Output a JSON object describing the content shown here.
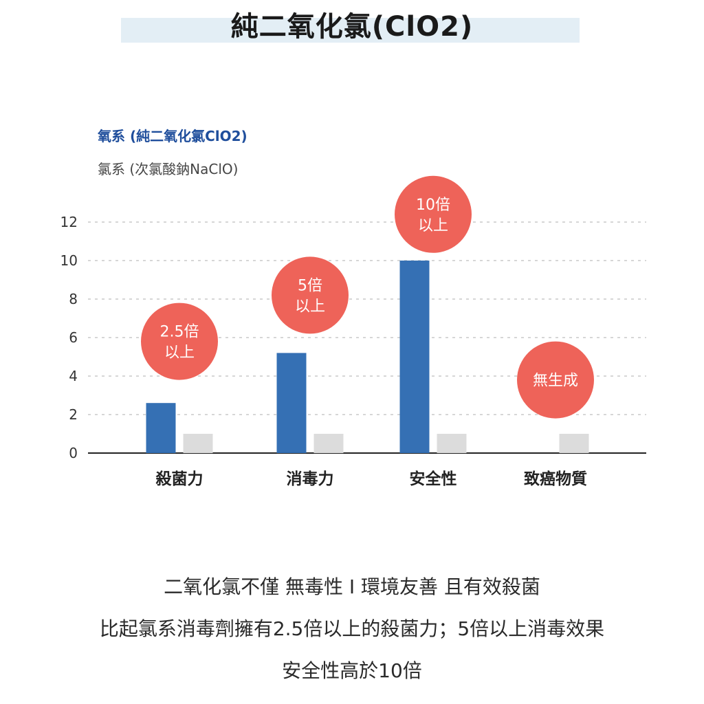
{
  "title": "純二氧化氯(ClO2)",
  "legend": [
    {
      "label": "氧系 (純二氧化氯ClO2)"
    },
    {
      "label": "氯系 (次氯酸鈉NaClO)"
    }
  ],
  "colors": {
    "primary_bar": "#3570b4",
    "secondary_bar": "#dcdcdc",
    "badge": "#ee6359",
    "title_band": "#e3eef5"
  },
  "chart_data": {
    "type": "bar",
    "categories": [
      "殺菌力",
      "消毒力",
      "安全性",
      "致癌物質"
    ],
    "series": [
      {
        "name": "氧系 (純二氧化氯ClO2)",
        "values": [
          2.6,
          5.2,
          10,
          null
        ]
      },
      {
        "name": "氯系 (次氯酸鈉NaClO)",
        "values": [
          1,
          1,
          1,
          1
        ]
      }
    ],
    "yticks": [
      0,
      2,
      4,
      6,
      8,
      10,
      12
    ],
    "ylim": [
      0,
      12
    ],
    "grid": true,
    "legend_position": "top-left",
    "annotations": [
      {
        "category": "殺菌力",
        "lines": [
          "2.5倍",
          "以上"
        ],
        "value": 5.8
      },
      {
        "category": "消毒力",
        "lines": [
          "5倍",
          "以上"
        ],
        "value": 8.2
      },
      {
        "category": "安全性",
        "lines": [
          "10倍",
          "以上"
        ],
        "value": 12.4
      },
      {
        "category": "致癌物質",
        "lines": [
          "無生成"
        ],
        "value": 3.8
      }
    ]
  },
  "captions": [
    "二氧化氯不僅 無毒性 I 環境友善 且有效殺菌",
    "比起氯系消毒劑擁有2.5倍以上的殺菌力；5倍以上消毒效果",
    "安全性高於10倍"
  ]
}
